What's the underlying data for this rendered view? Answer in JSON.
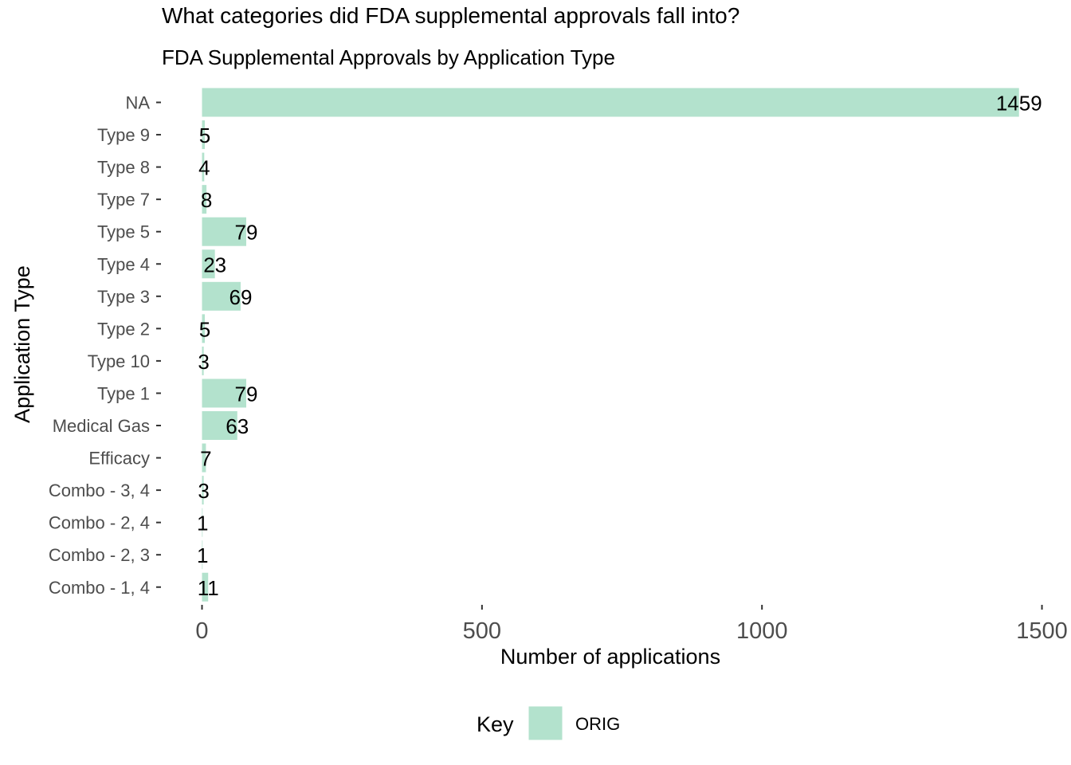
{
  "chart_data": {
    "type": "bar",
    "orientation": "horizontal",
    "title": "What categories did FDA supplemental approvals fall into?",
    "subtitle": "FDA Supplemental Approvals by Application Type",
    "xlabel": "Number of applications",
    "ylabel": "Application Type",
    "xlim": [
      0,
      1500
    ],
    "x_ticks": [
      "0",
      "500",
      "1000",
      "1500"
    ],
    "x_tick_values": [
      0,
      500,
      1000,
      1500
    ],
    "grid": false,
    "legend_position": "bottom",
    "legend_title": "Key",
    "categories": [
      "NA",
      "Type 9",
      "Type 8",
      "Type 7",
      "Type 5",
      "Type 4",
      "Type 3",
      "Type 2",
      "Type 10",
      "Type 1",
      "Medical Gas",
      "Efficacy",
      "Combo - 3, 4",
      "Combo - 2, 4",
      "Combo - 2, 3",
      "Combo - 1, 4"
    ],
    "series": [
      {
        "name": "ORIG",
        "color": "#b3e2cd",
        "values": [
          1459,
          5,
          4,
          8,
          79,
          23,
          69,
          5,
          3,
          79,
          63,
          7,
          3,
          1,
          1,
          11
        ],
        "labels": [
          "1459",
          "5",
          "4",
          "8",
          "79",
          "23",
          "69",
          "5",
          "3",
          "79",
          "63",
          "7",
          "3",
          "1",
          "1",
          "11"
        ]
      }
    ]
  }
}
